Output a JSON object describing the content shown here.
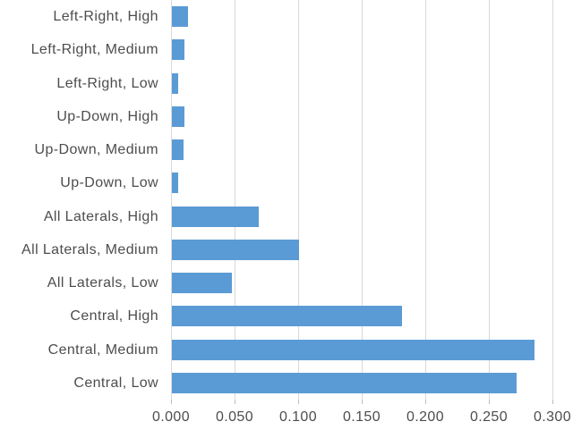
{
  "chart_data": {
    "type": "bar",
    "orientation": "horizontal",
    "title": "",
    "xlabel": "",
    "ylabel": "",
    "categories": [
      "Left-Right, High",
      "Left-Right, Medium",
      "Left-Right, Low",
      "Up-Down, High",
      "Up-Down, Medium",
      "Up-Down, Low",
      "All Laterals, High",
      "All Laterals, Medium",
      "All Laterals, Low",
      "Central, High",
      "Central, Medium",
      "Central, Low"
    ],
    "values": [
      0.013,
      0.01,
      0.005,
      0.01,
      0.009,
      0.005,
      0.068,
      0.1,
      0.047,
      0.181,
      0.285,
      0.271
    ],
    "xlim": [
      0,
      0.3
    ],
    "xticks": [
      0,
      0.05,
      0.1,
      0.15,
      0.2,
      0.25,
      0.3
    ],
    "xtick_labels": [
      "0.000",
      "0.050",
      "0.100",
      "0.150",
      "0.200",
      "0.250",
      "0.300"
    ],
    "grid": true,
    "legend": "none",
    "colors": {
      "bar_fill": "#5B9BD5",
      "gridline": "#D9D9D9",
      "tick_mark": "#BFBFBF",
      "axis_text": "#4D4D4D",
      "background": "#FFFFFF"
    }
  }
}
